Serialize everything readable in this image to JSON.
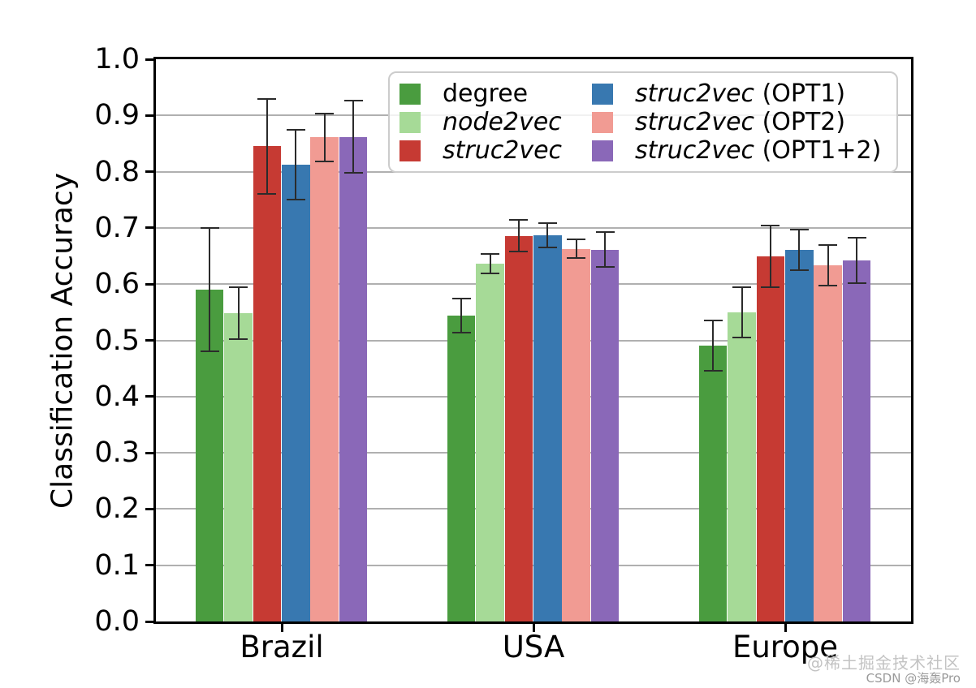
{
  "chart_data": {
    "type": "bar",
    "title": "",
    "xlabel": "",
    "ylabel": "Classification Accuracy",
    "ylim": [
      0.0,
      1.0
    ],
    "ytick_step": 0.1,
    "ytick_labels": [
      "0.0",
      "0.1",
      "0.2",
      "0.3",
      "0.4",
      "0.5",
      "0.6",
      "0.7",
      "0.8",
      "0.9",
      "1.0"
    ],
    "grid": "horizontal",
    "grid_color": "#b0b0b0",
    "legend_position": "upper-center-inside",
    "error_bars": true,
    "error_bar_color": "#2b2b2b",
    "categories": [
      "Brazil",
      "USA",
      "Europe"
    ],
    "series": [
      {
        "label_italic": "",
        "label_plain": "degree",
        "color": "#4a9c3f",
        "values": [
          0.59,
          0.544,
          0.491
        ],
        "errors": [
          0.11,
          0.031,
          0.045
        ]
      },
      {
        "label_italic": "node2vec",
        "label_plain": "",
        "color": "#a6da97",
        "values": [
          0.548,
          0.636,
          0.55
        ],
        "errors": [
          0.046,
          0.017,
          0.045
        ]
      },
      {
        "label_italic": "struc2vec",
        "label_plain": "",
        "color": "#c63a33",
        "values": [
          0.845,
          0.686,
          0.649
        ],
        "errors": [
          0.085,
          0.028,
          0.055
        ]
      },
      {
        "label_italic": "struc2vec",
        "label_plain": " (OPT1)",
        "color": "#3878b0",
        "values": [
          0.813,
          0.687,
          0.661
        ],
        "errors": [
          0.062,
          0.022,
          0.036
        ]
      },
      {
        "label_italic": "struc2vec",
        "label_plain": " (OPT2)",
        "color": "#f19b93",
        "values": [
          0.861,
          0.663,
          0.633
        ],
        "errors": [
          0.043,
          0.017,
          0.036
        ]
      },
      {
        "label_italic": "struc2vec",
        "label_plain": " (OPT1+2)",
        "color": "#8a68b8",
        "values": [
          0.862,
          0.661,
          0.642
        ],
        "errors": [
          0.064,
          0.031,
          0.04
        ]
      }
    ]
  },
  "watermark": {
    "line1": "@稀土掘金技术社区",
    "line2": "CSDN @海轰Pro"
  }
}
